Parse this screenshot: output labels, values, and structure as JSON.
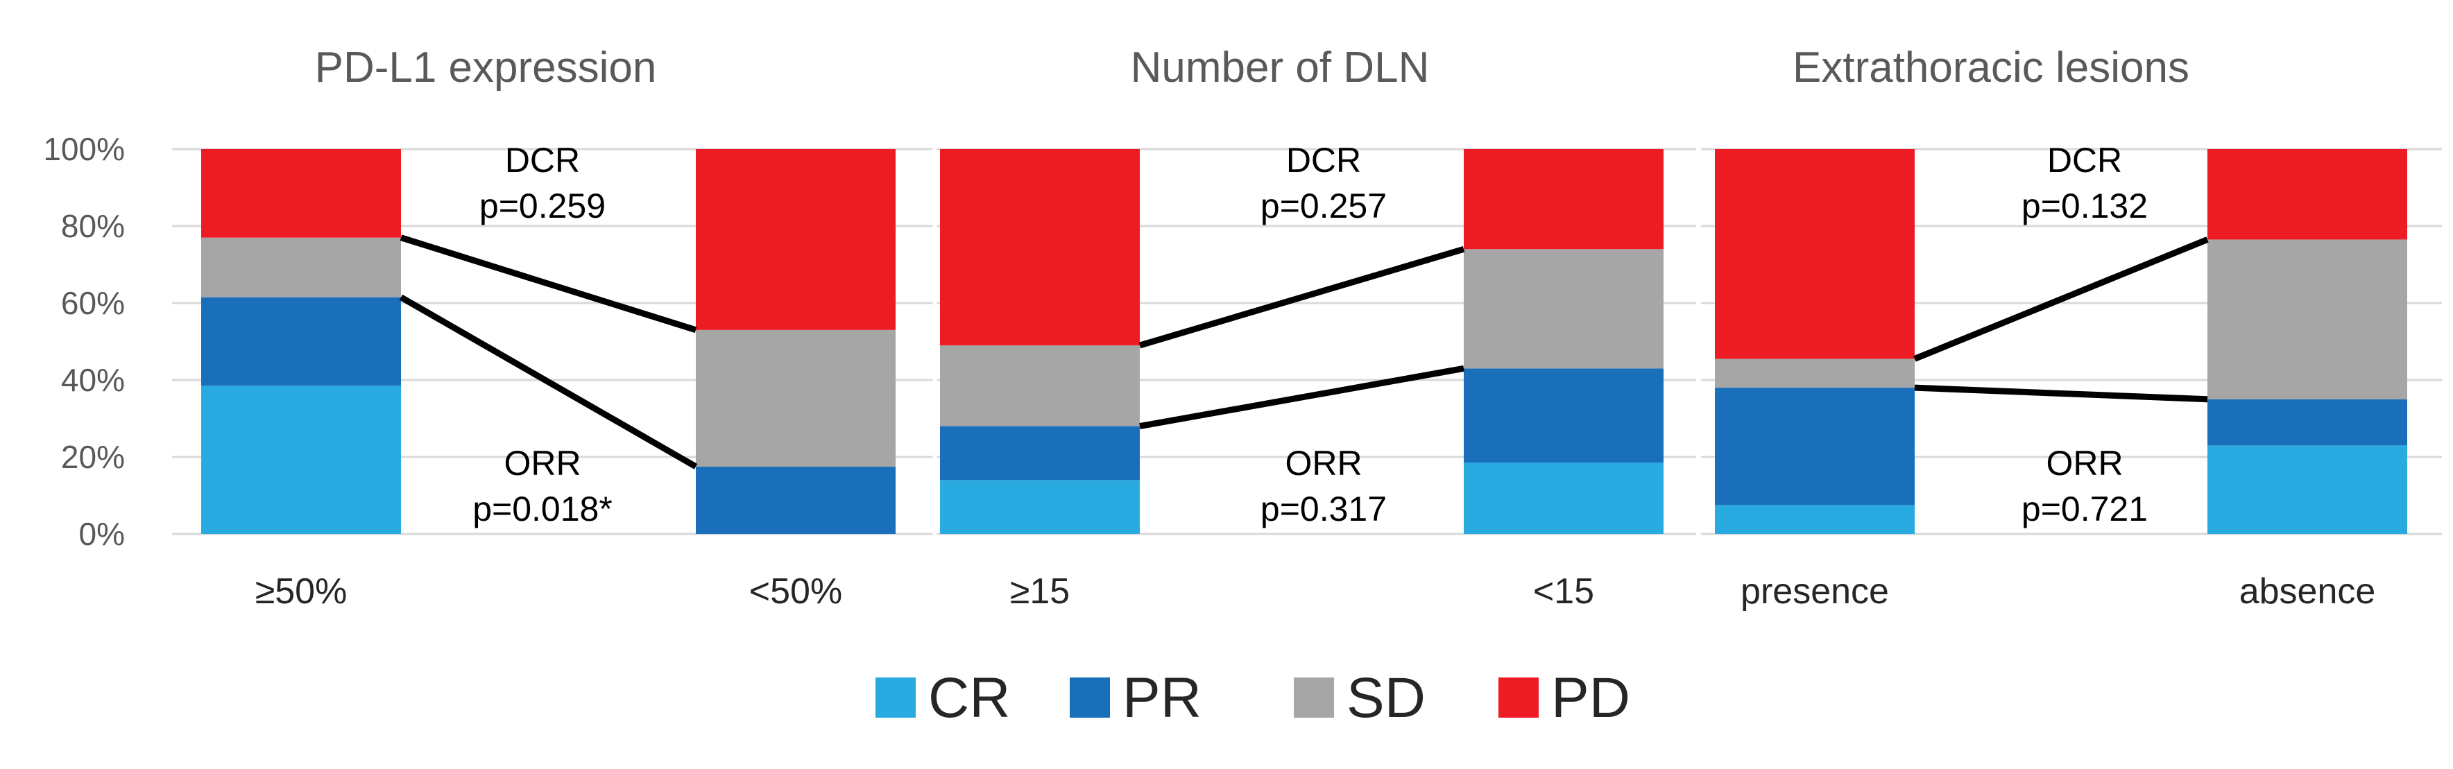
{
  "chart_data": {
    "type": "bar",
    "stacked": true,
    "ylim": [
      0,
      100
    ],
    "y_ticks": [
      "0%",
      "20%",
      "40%",
      "60%",
      "80%",
      "100%"
    ],
    "legend": [
      {
        "name": "CR",
        "color": "#29abe2"
      },
      {
        "name": "PR",
        "color": "#1a6fba"
      },
      {
        "name": "SD",
        "color": "#a6a6a6"
      },
      {
        "name": "PD",
        "color": "#ed1c24"
      }
    ],
    "panels": [
      {
        "title": "PD-L1 expression",
        "categories": [
          "≥50%",
          "<50%"
        ],
        "series": [
          {
            "name": "CR",
            "values": [
              38.5,
              0
            ]
          },
          {
            "name": "PR",
            "values": [
              23,
              17.5
            ]
          },
          {
            "name": "SD",
            "values": [
              15.5,
              35.5
            ]
          },
          {
            "name": "PD",
            "values": [
              23,
              47
            ]
          }
        ],
        "dcr_label": "DCR",
        "dcr_p": "p=0.259",
        "orr_label": "ORR",
        "orr_p": "p=0.018*"
      },
      {
        "title": "Number of DLN",
        "categories": [
          "≥15",
          "<15"
        ],
        "series": [
          {
            "name": "CR",
            "values": [
              14,
              18.5
            ]
          },
          {
            "name": "PR",
            "values": [
              14,
              24.5
            ]
          },
          {
            "name": "SD",
            "values": [
              21,
              31
            ]
          },
          {
            "name": "PD",
            "values": [
              51,
              26
            ]
          }
        ],
        "dcr_label": "DCR",
        "dcr_p": "p=0.257",
        "orr_label": "ORR",
        "orr_p": "p=0.317"
      },
      {
        "title": "Extrathoracic lesions",
        "categories": [
          "presence",
          "absence"
        ],
        "series": [
          {
            "name": "CR",
            "values": [
              7.5,
              23
            ]
          },
          {
            "name": "PR",
            "values": [
              30.5,
              12
            ]
          },
          {
            "name": "SD",
            "values": [
              7.5,
              41.5
            ]
          },
          {
            "name": "PD",
            "values": [
              54.5,
              23.5
            ]
          }
        ],
        "dcr_label": "DCR",
        "dcr_p": "p=0.132",
        "orr_label": "ORR",
        "orr_p": "p=0.721"
      }
    ]
  }
}
